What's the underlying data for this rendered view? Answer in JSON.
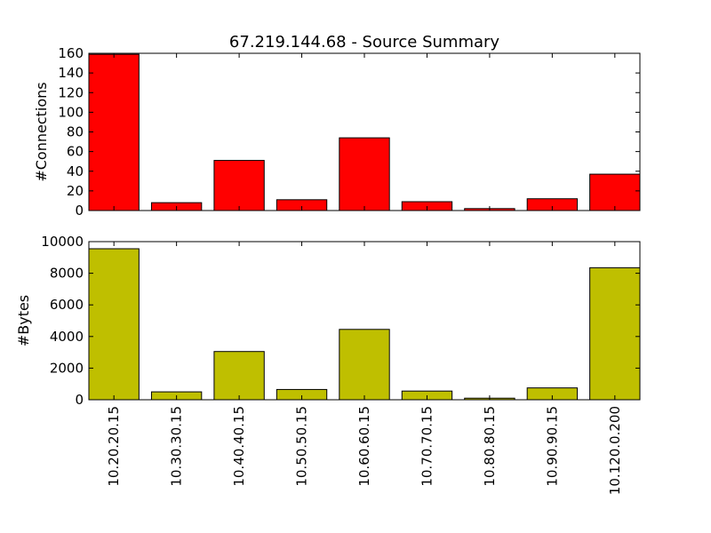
{
  "chart_data": {
    "type": "bar",
    "title": "67.219.144.68 - Source Summary",
    "categories": [
      "10.20.20.15",
      "10.30.30.15",
      "10.40.40.15",
      "10.50.50.15",
      "10.60.60.15",
      "10.70.70.15",
      "10.80.80.15",
      "10.90.90.15",
      "10.120.0.200"
    ],
    "panels": [
      {
        "ylabel": "#Connections",
        "ylim": [
          0,
          160
        ],
        "yticks": [
          0,
          20,
          40,
          60,
          80,
          100,
          120,
          140,
          160
        ],
        "color": "#ff0000",
        "values": [
          159,
          8,
          51,
          11,
          74,
          9,
          2,
          12,
          37
        ]
      },
      {
        "ylabel": "#Bytes",
        "ylim": [
          0,
          10000
        ],
        "yticks": [
          0,
          2000,
          4000,
          6000,
          8000,
          10000
        ],
        "color": "#bfbf00",
        "values": [
          9550,
          500,
          3050,
          650,
          4450,
          550,
          100,
          750,
          8350
        ]
      }
    ],
    "grid": false,
    "legend": "none"
  }
}
